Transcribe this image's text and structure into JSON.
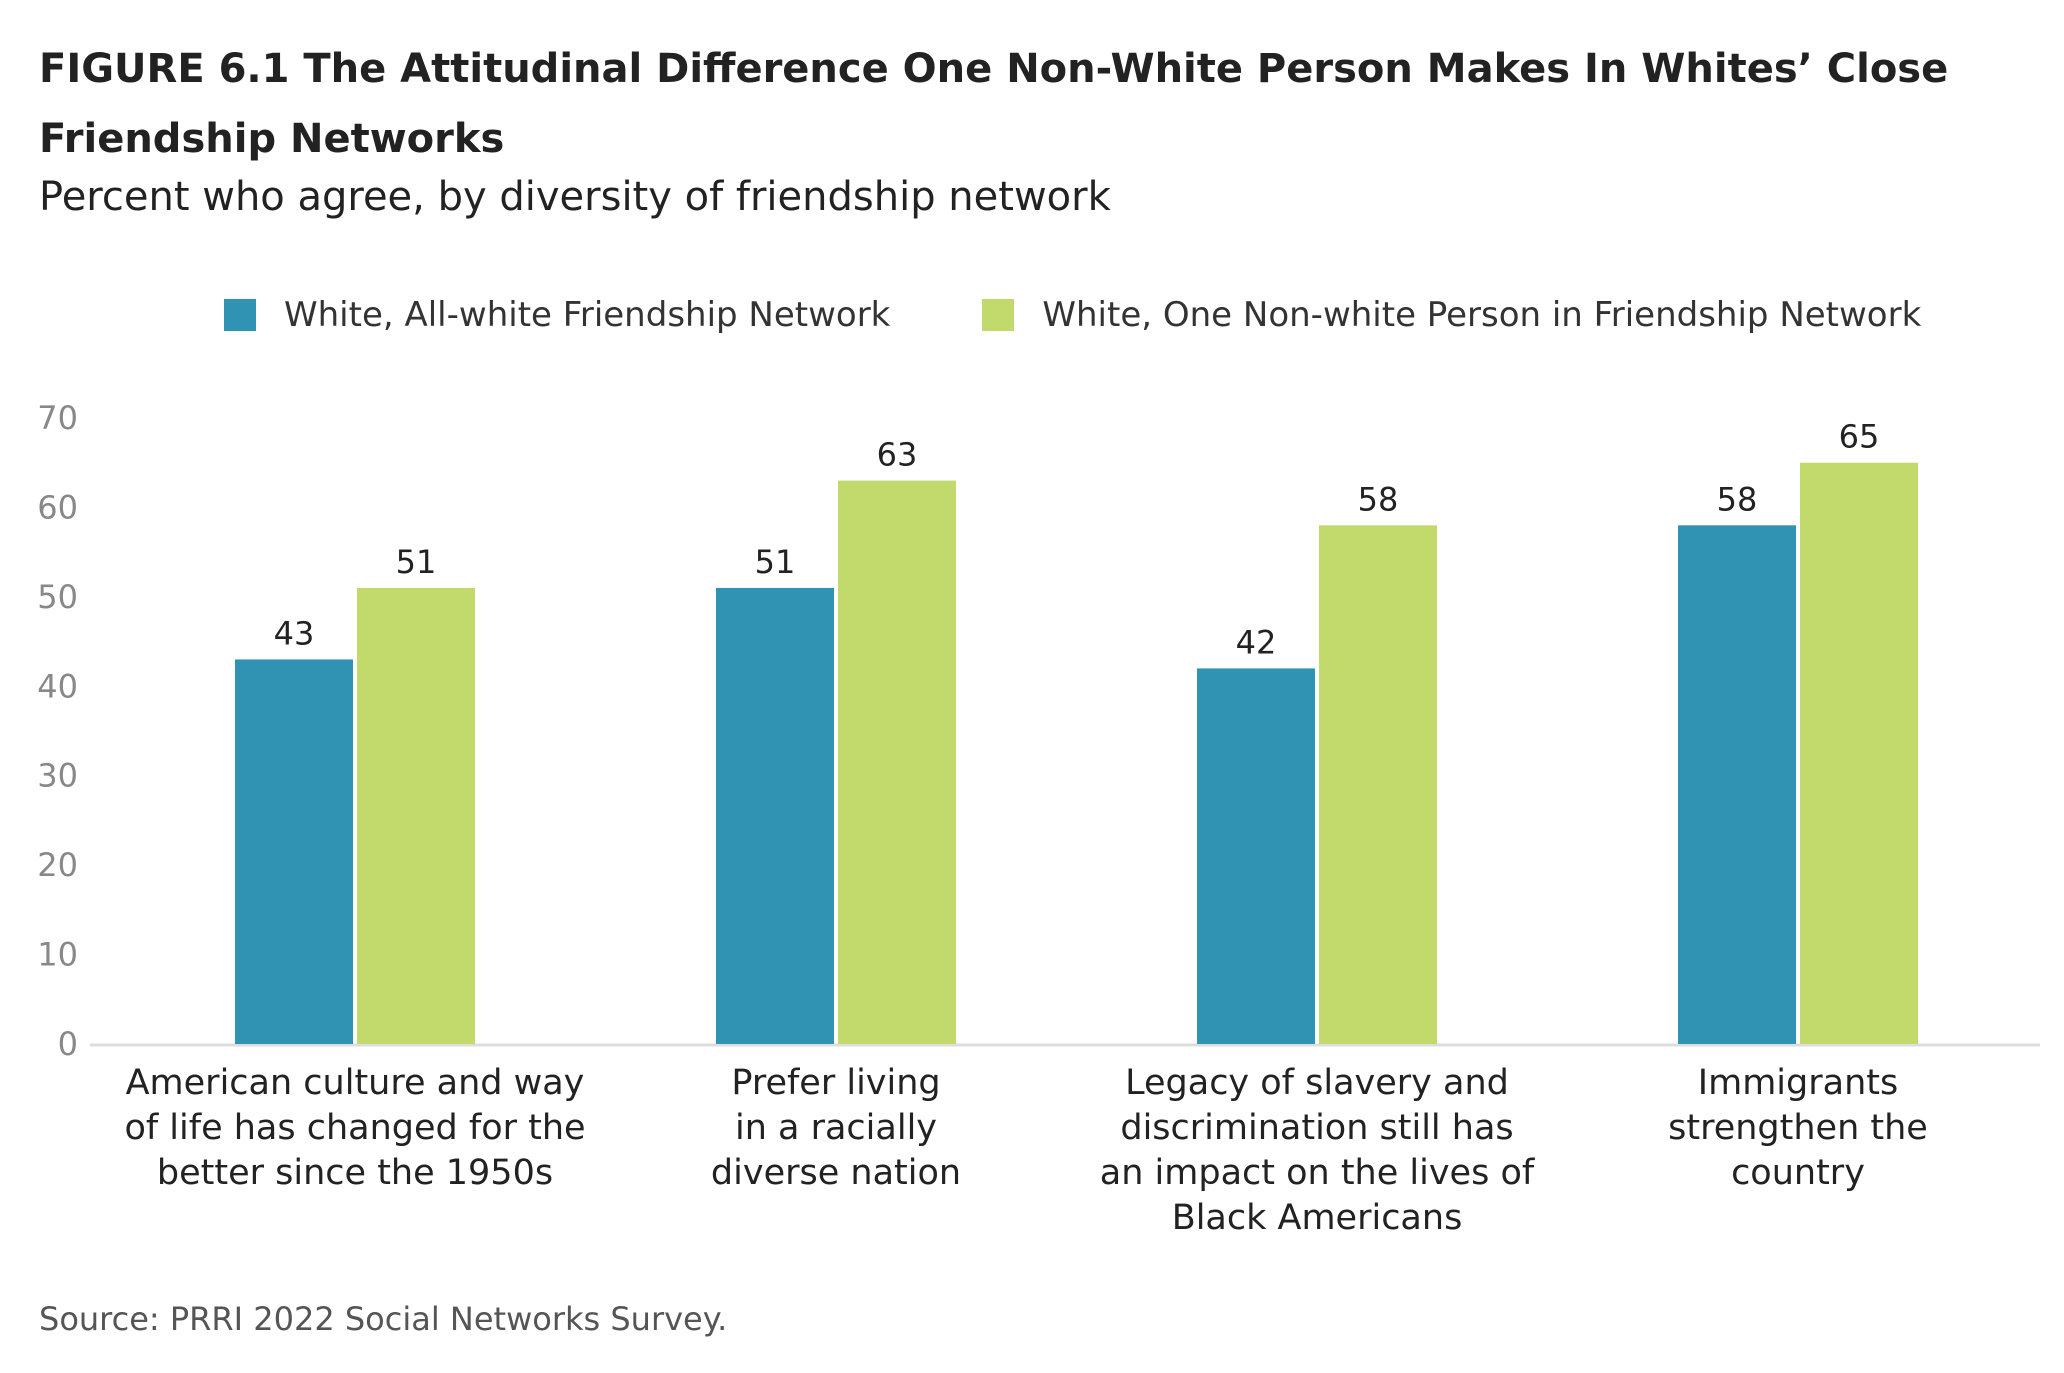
{
  "title": "FIGURE 6.1  The Attitudinal Difference One Non-White Person Makes In Whites’ Close Friendship Networks",
  "subtitle": "Percent who agree, by diversity of friendship network",
  "source": "Source: PRRI 2022 Social Networks Survey.",
  "colors": {
    "series1": "#3193b3",
    "series2": "#c2d96b",
    "axis": "#dddddd"
  },
  "chart_data": {
    "type": "bar",
    "title": "FIGURE 6.1  The Attitudinal Difference One Non-White Person Makes In Whites’ Close Friendship Networks",
    "subtitle": "Percent who agree, by diversity of friendship network",
    "xlabel": "",
    "ylabel": "",
    "ylim": [
      0,
      70
    ],
    "yticks": [
      0,
      10,
      20,
      30,
      40,
      50,
      60,
      70
    ],
    "grid": false,
    "legend_position": "top",
    "categories": [
      [
        "American culture and way",
        "of life has changed for the",
        "better since the 1950s"
      ],
      [
        "Prefer living",
        "in a racially",
        "diverse nation"
      ],
      [
        "Legacy of slavery and",
        "discrimination still has",
        "an impact on the lives of",
        "Black Americans"
      ],
      [
        "Immigrants",
        "strengthen the",
        "country"
      ]
    ],
    "series": [
      {
        "name": "White, All-white Friendship Network",
        "values": [
          43,
          51,
          42,
          58
        ]
      },
      {
        "name": "White, One Non-white Person in Friendship Network",
        "values": [
          51,
          63,
          58,
          65
        ]
      }
    ]
  }
}
